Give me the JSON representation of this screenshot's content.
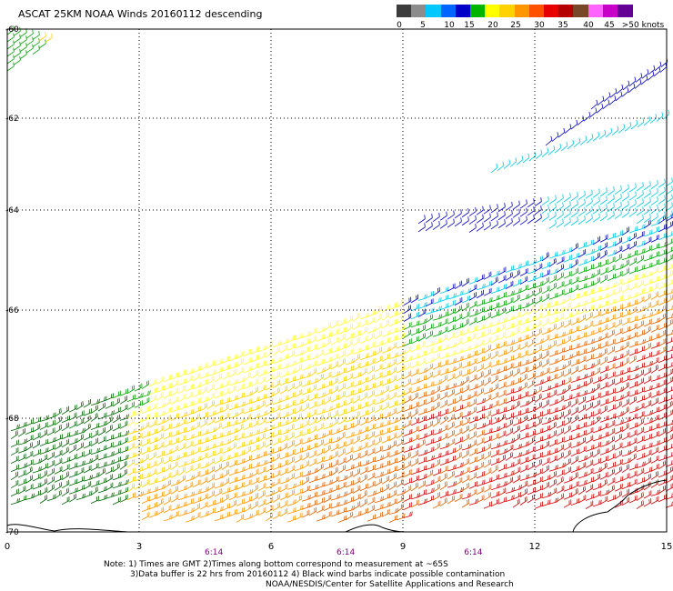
{
  "title": "ASCAT 25KM NOAA Winds 20160112 descending",
  "legend": {
    "bins": [
      {
        "label": "0",
        "color": "#3c3c3c"
      },
      {
        "label": "",
        "color": "#8c8c8c"
      },
      {
        "label": "5",
        "color": "#00c8ff"
      },
      {
        "label": "10",
        "color": "#0064ff"
      },
      {
        "label": "",
        "color": "#0000c8"
      },
      {
        "label": "15",
        "color": "#00b400"
      },
      {
        "label": "",
        "color": "#ffff00"
      },
      {
        "label": "20",
        "color": "#ffd200"
      },
      {
        "label": "25",
        "color": "#ff9600"
      },
      {
        "label": "",
        "color": "#ff5000"
      },
      {
        "label": "30",
        "color": "#e60000"
      },
      {
        "label": "35",
        "color": "#b40000"
      },
      {
        "label": "",
        "color": "#784628"
      },
      {
        "label": "40",
        "color": "#ff64ff"
      },
      {
        "label": "45",
        "color": "#c800c8"
      },
      {
        "label": ">50 knots",
        "color": "#640096"
      }
    ]
  },
  "chart_data": {
    "type": "map",
    "y_axis": {
      "labels": [
        "-60",
        "-62",
        "-64",
        "-66",
        "-68",
        "-70"
      ],
      "values": [
        -60,
        -62,
        -64,
        -66,
        -68,
        -70
      ]
    },
    "x_axis": {
      "labels": [
        "0",
        "3",
        "6",
        "9",
        "12",
        "15"
      ],
      "values": [
        0,
        3,
        6,
        9,
        12,
        15
      ]
    },
    "time_labels": [
      {
        "text": "6:14",
        "x": 4.7
      },
      {
        "text": "6:14",
        "x": 7.7
      },
      {
        "text": "6:14",
        "x": 10.6
      }
    ],
    "grid": true,
    "wind_speed_units": "knots"
  },
  "notes": {
    "line1": "Note: 1) Times are GMT 2)Times along bottom correspond to measurement at ~65S",
    "line2": "3)Data buffer is 22 hrs from 20160112 4) Black wind barbs indicate possible contamination",
    "line3": "NOAA/NESDIS/Center for Satellite Applications and Research"
  }
}
